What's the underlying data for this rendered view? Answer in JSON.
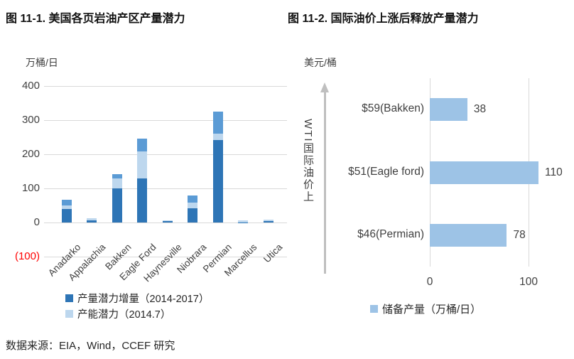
{
  "footer": {
    "source_note": "数据来源：EIA，Wind，CCEF 研究"
  },
  "chart_data": [
    {
      "type": "bar",
      "subtype": "stacked-vertical-columns",
      "title": "图 11-1. 美国各页岩油产区产量潜力",
      "unit_label": "万桶/日",
      "xlabel": "",
      "ylabel": "万桶/日",
      "ylim": [
        -100,
        400
      ],
      "grid": true,
      "legend_position": "bottom",
      "categories": [
        "Anadarko",
        "Appalachia",
        "Bakken",
        "Eagle Ford",
        "Haynesville",
        "Niobrara",
        "Permian",
        "Marcellus",
        "Utica"
      ],
      "series": [
        {
          "name": "产量潜力增量（2014-2017）",
          "color": "#2E75B6",
          "in_legend": true,
          "values": [
            40,
            7,
            100,
            130,
            4,
            42,
            242,
            1,
            4
          ]
        },
        {
          "name": "产能潜力（2014.7）",
          "color": "#BDD7EE",
          "in_legend": true,
          "values": [
            10,
            6,
            30,
            78,
            2,
            16,
            19,
            6,
            4
          ]
        },
        {
          "name": "",
          "color": "#5B9BD5",
          "in_legend": false,
          "values": [
            17,
            0,
            12,
            38,
            0,
            21,
            64,
            0,
            0
          ]
        }
      ],
      "yticks": [
        {
          "value": 400,
          "label": "400"
        },
        {
          "value": 300,
          "label": "300"
        },
        {
          "value": 200,
          "label": "200"
        },
        {
          "value": 100,
          "label": "100"
        },
        {
          "value": 0,
          "label": "0"
        },
        {
          "value": -100,
          "label": "(100)",
          "color": "#FF0000"
        }
      ]
    },
    {
      "type": "bar",
      "subtype": "horizontal",
      "title": "图 11-2. 国际油价上涨后释放产量潜力",
      "unit_label": "美元/桶",
      "axis_annotation": "WTI国际油价上",
      "series_name": "储备产量（万桶/日）",
      "bar_color": "#9DC3E6",
      "grid": true,
      "legend_position": "bottom",
      "categories": [
        "$59(Bakken)",
        "$51(Eagle ford)",
        "$46(Permian)"
      ],
      "values": [
        38,
        110,
        78
      ],
      "data_labels": [
        "38",
        "110",
        "78"
      ],
      "xlim": [
        0,
        133
      ],
      "xticks": [
        {
          "value": 0,
          "label": "0"
        },
        {
          "value": 100,
          "label": "100"
        }
      ]
    }
  ]
}
